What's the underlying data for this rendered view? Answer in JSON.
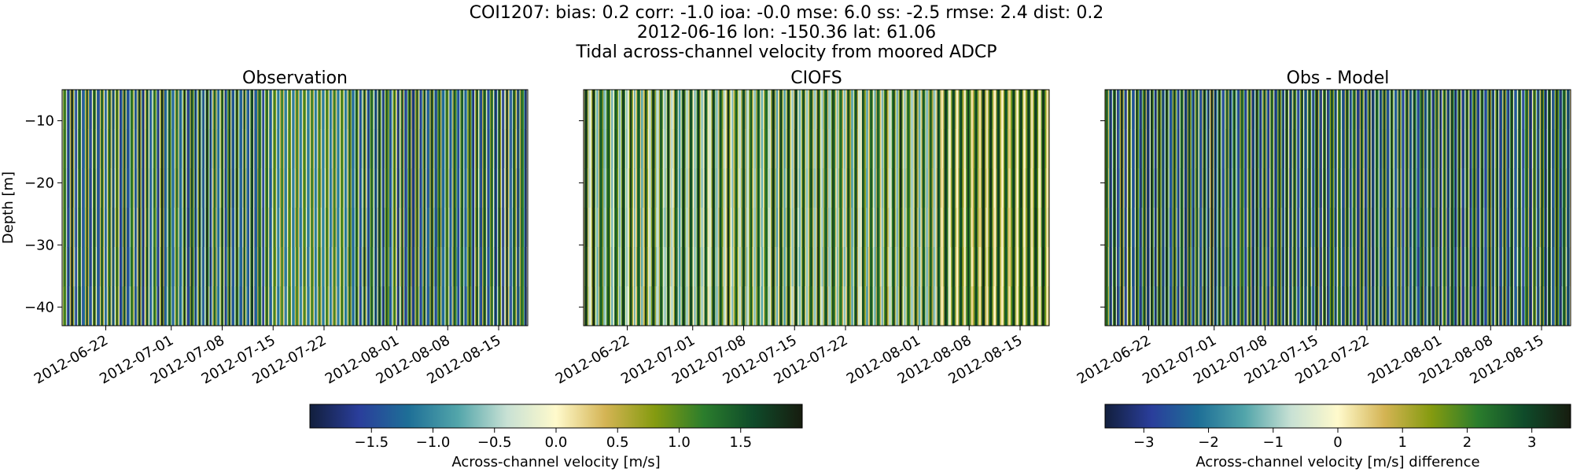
{
  "header": {
    "line1": "COI1207: bias: 0.2  corr: -1.0  ioa: -0.0  mse: 6.0  ss: -2.5  rmse: 2.4  dist: 0.2",
    "line2": "2012-06-16 lon: -150.36 lat: 61.06",
    "line3": "Tidal across-channel velocity from moored ADCP"
  },
  "chart_data": [
    {
      "type": "heatmap",
      "title": "Observation",
      "ylabel": "Depth [m]",
      "xlabel": "",
      "x_tick_labels": [
        "2012-06-22",
        "2012-07-01",
        "2012-07-08",
        "2012-07-15",
        "2012-07-22",
        "2012-08-01",
        "2012-08-08",
        "2012-08-15"
      ],
      "y_ticks": [
        -10,
        -20,
        -30,
        -40
      ],
      "ylim": [
        -43,
        -5
      ],
      "xlim": [
        "2012-06-16",
        "2012-08-19"
      ],
      "colormap": "delta",
      "vmin": -2.0,
      "vmax": 2.0,
      "colorbar_label": "Across-channel velocity [m/s]",
      "colorbar_ticks": [
        -1.5,
        -1.0,
        -0.5,
        0.0,
        0.5,
        1.0,
        1.5
      ]
    },
    {
      "type": "heatmap",
      "title": "CIOFS",
      "x_tick_labels": [
        "2012-06-22",
        "2012-07-01",
        "2012-07-08",
        "2012-07-15",
        "2012-07-22",
        "2012-08-01",
        "2012-08-08",
        "2012-08-15"
      ],
      "y_ticks": [
        -10,
        -20,
        -30,
        -40
      ],
      "ylim": [
        -43,
        -5
      ],
      "xlim": [
        "2012-06-16",
        "2012-08-19"
      ],
      "colormap": "delta",
      "vmin": -2.0,
      "vmax": 2.0
    },
    {
      "type": "heatmap",
      "title": "Obs - Model",
      "x_tick_labels": [
        "2012-06-22",
        "2012-07-01",
        "2012-07-08",
        "2012-07-15",
        "2012-07-22",
        "2012-08-01",
        "2012-08-08",
        "2012-08-15"
      ],
      "y_ticks": [
        -10,
        -20,
        -30,
        -40
      ],
      "ylim": [
        -43,
        -5
      ],
      "xlim": [
        "2012-06-16",
        "2012-08-19"
      ],
      "colormap": "delta",
      "vmin": -3.6,
      "vmax": 3.6,
      "colorbar_label": "Across-channel velocity [m/s] difference",
      "colorbar_ticks": [
        -3,
        -2,
        -1,
        0,
        1,
        2,
        3
      ]
    }
  ],
  "colormap_stops": [
    "#121f3d",
    "#2a3e9b",
    "#1e6f97",
    "#52a5aa",
    "#c8e1d4",
    "#fffacc",
    "#d4b454",
    "#859b10",
    "#2b7d2c",
    "#0f4b2a",
    "#171c0f"
  ]
}
